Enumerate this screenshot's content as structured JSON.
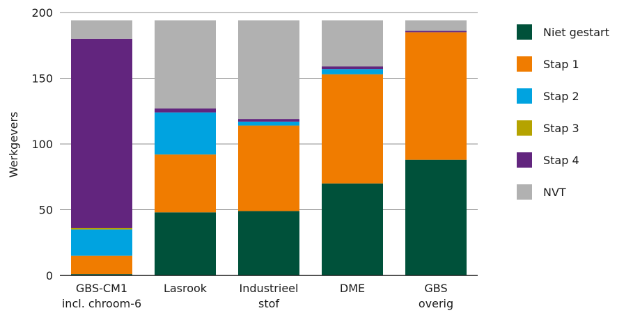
{
  "chart_data": {
    "type": "bar",
    "stacked": true,
    "ylabel": "Werkgevers",
    "ylim": [
      0,
      200
    ],
    "yticks": [
      0,
      50,
      100,
      150,
      200
    ],
    "grid": true,
    "legend_position": "right",
    "categories": [
      [
        "GBS-CM1",
        "incl. chroom-6"
      ],
      [
        "Lasrook"
      ],
      [
        "Industrieel",
        "stof"
      ],
      [
        "DME"
      ],
      [
        "GBS",
        "overig"
      ]
    ],
    "series": [
      {
        "name": "Niet gestart",
        "color": "#00513a",
        "values": [
          1,
          48,
          49,
          70,
          88
        ]
      },
      {
        "name": "Stap 1",
        "color": "#f07c00",
        "values": [
          14,
          44,
          65,
          83,
          97
        ]
      },
      {
        "name": "Stap 2",
        "color": "#00a3e0",
        "values": [
          20,
          32,
          3,
          4,
          0
        ]
      },
      {
        "name": "Stap 3",
        "color": "#b5a300",
        "values": [
          1,
          0,
          0,
          0,
          0
        ]
      },
      {
        "name": "Stap 4",
        "color": "#62257e",
        "values": [
          144,
          3,
          2,
          2,
          1
        ]
      },
      {
        "name": "NVT",
        "color": "#b1b1b1",
        "values": [
          14,
          67,
          75,
          35,
          8
        ]
      }
    ]
  }
}
